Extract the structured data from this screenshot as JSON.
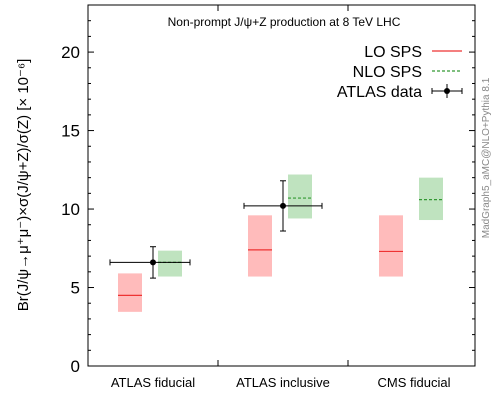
{
  "chart_data": {
    "type": "bar",
    "title": "Non-prompt J/ψ+Z production at 8 TeV LHC",
    "ylabel": "Br(J/ψ→μ⁺μ⁻)×σ(J/ψ+Z)/σ(Z) [× 10⁻⁶]",
    "xlabel": "",
    "ylim": [
      0,
      23
    ],
    "yticks": [
      0,
      5,
      10,
      15,
      20
    ],
    "categories": [
      "ATLAS fiducial",
      "ATLAS inclusive",
      "CMS fiducial"
    ],
    "series": [
      {
        "name": "LO SPS",
        "style": "solid-line-with-band",
        "color": "#ee3333",
        "band_color": "#ffbbbb",
        "central": [
          4.5,
          7.4,
          7.3
        ],
        "low": [
          3.45,
          5.7,
          5.7
        ],
        "high": [
          5.9,
          9.6,
          9.6
        ]
      },
      {
        "name": "NLO SPS",
        "style": "dashed-line-with-band",
        "color": "#339933",
        "band_color": "#bfe3bf",
        "central": [
          6.6,
          10.7,
          10.6
        ],
        "low": [
          5.7,
          9.4,
          9.3
        ],
        "high": [
          7.35,
          12.2,
          12.0
        ]
      },
      {
        "name": "ATLAS data",
        "style": "point-with-errorbars",
        "color": "#000000",
        "values": [
          6.6,
          10.2,
          null
        ],
        "y_low": [
          5.6,
          8.6,
          null
        ],
        "y_high": [
          7.6,
          11.8,
          null
        ]
      }
    ],
    "legend_position": "top-right",
    "side_annotation": "MadGraph5_aMC@NLO+Pythia 8.1",
    "grid": false
  }
}
